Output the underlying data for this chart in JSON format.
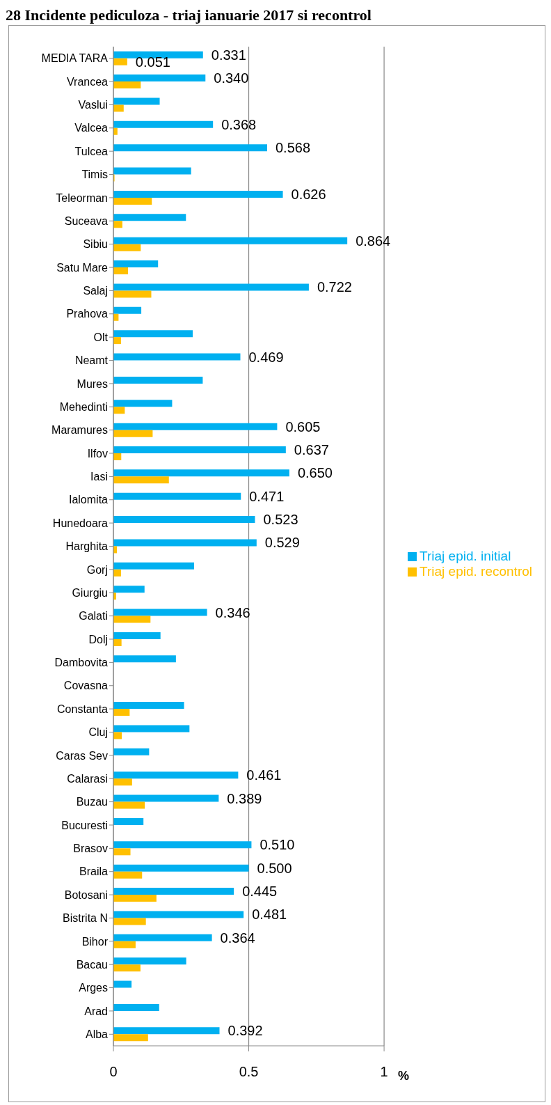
{
  "chart_data": {
    "type": "bar",
    "orientation": "horizontal",
    "title": "28 Incidente pediculoza - triaj ianuarie 2017 si recontrol",
    "xlabel": "%",
    "categories": [
      "MEDIA TARA",
      "Vrancea",
      "Vaslui",
      "Valcea",
      "Tulcea",
      "Timis",
      "Teleorman",
      "Suceava",
      "Sibiu",
      "Satu Mare",
      "Salaj",
      "Prahova",
      "Olt",
      "Neamt",
      "Mures",
      "Mehedinti",
      "Maramures",
      "Ilfov",
      "Iasi",
      "Ialomita",
      "Hunedoara",
      "Harghita",
      "Gorj",
      "Giurgiu",
      "Galati",
      "Dolj",
      "Dambovita",
      "Covasna",
      "Constanta",
      "Cluj",
      "Caras Sev",
      "Calarasi",
      "Buzau",
      "Bucuresti",
      "Brasov",
      "Braila",
      "Botosani",
      "Bistrita N",
      "Bihor",
      "Bacau",
      "Arges",
      "Arad",
      "Alba"
    ],
    "series": [
      {
        "name": "Triaj epid. initial",
        "color": "#00b0f0",
        "values": [
          0.331,
          0.34,
          0.171,
          0.368,
          0.568,
          0.287,
          0.626,
          0.268,
          0.864,
          0.165,
          0.722,
          0.103,
          0.293,
          0.469,
          0.33,
          0.217,
          0.605,
          0.637,
          0.65,
          0.471,
          0.523,
          0.529,
          0.298,
          0.115,
          0.346,
          0.174,
          0.231,
          0,
          0.261,
          0.281,
          0.132,
          0.461,
          0.389,
          0.111,
          0.51,
          0.5,
          0.445,
          0.481,
          0.364,
          0.269,
          0.067,
          0.169,
          0.392
        ],
        "value_labels": [
          "0.331",
          "0.340",
          null,
          "0.368",
          "0.568",
          null,
          "0.626",
          null,
          "0.864",
          null,
          "0.722",
          null,
          null,
          "0.469",
          null,
          null,
          "0.605",
          "0.637",
          "0.650",
          "0.471",
          "0.523",
          "0.529",
          null,
          null,
          "0.346",
          null,
          null,
          null,
          null,
          null,
          null,
          "0.461",
          "0.389",
          null,
          "0.510",
          "0.500",
          "0.445",
          "0.481",
          "0.364",
          null,
          null,
          null,
          "0.392"
        ]
      },
      {
        "name": "Triaj epid. recontrol",
        "color": "#ffc000",
        "values": [
          0.051,
          0.101,
          0.038,
          0.015,
          0,
          0.004,
          0.142,
          0.033,
          0.101,
          0.054,
          0.14,
          0.019,
          0.028,
          0,
          0,
          0.042,
          0.145,
          0.029,
          0.205,
          0,
          0,
          0.013,
          0.028,
          0.01,
          0.137,
          0.03,
          0,
          0,
          0.06,
          0.031,
          0,
          0.069,
          0.116,
          0,
          0.063,
          0.106,
          0.159,
          0.12,
          0.082,
          0.1,
          0,
          0,
          0.128
        ],
        "value_labels": [
          "0.051",
          null,
          null,
          null,
          null,
          null,
          null,
          null,
          null,
          null,
          null,
          null,
          null,
          null,
          null,
          null,
          null,
          null,
          null,
          null,
          null,
          null,
          null,
          null,
          null,
          null,
          null,
          null,
          null,
          null,
          null,
          null,
          null,
          null,
          null,
          null,
          null,
          null,
          null,
          null,
          null,
          null,
          null
        ]
      }
    ],
    "xlim": [
      0,
      1
    ],
    "xticks": [
      0,
      0.5,
      1
    ],
    "grid": "x",
    "legend": "right"
  }
}
